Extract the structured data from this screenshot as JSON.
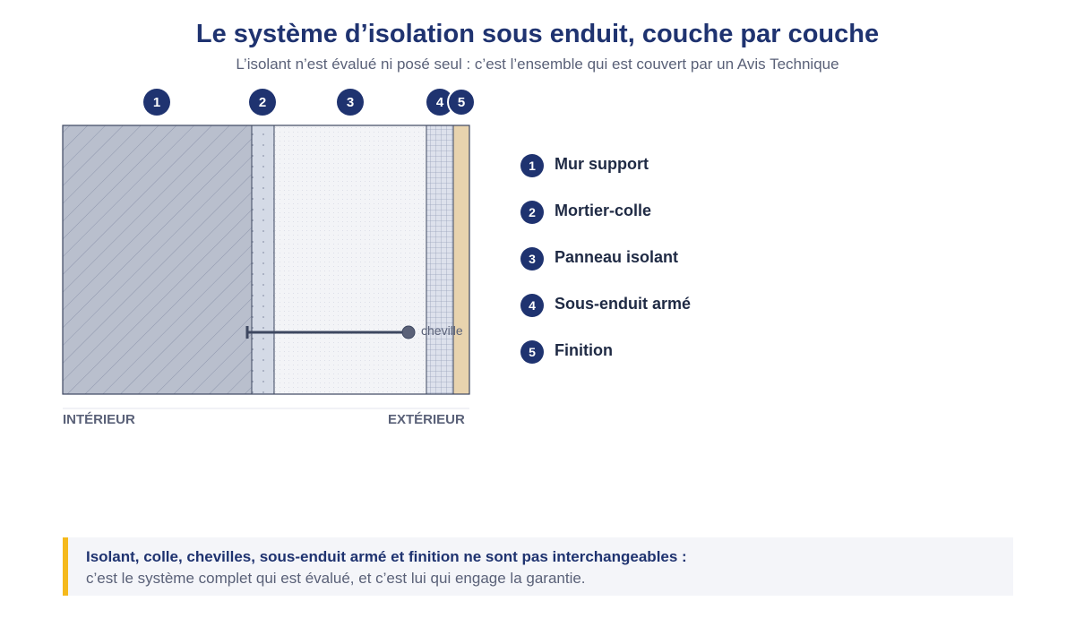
{
  "header": {
    "title": "Le système d’isolation sous enduit, couche par couche",
    "subtitle": "L’isolant n’est évalué ni posé seul : c’est l’ensemble qui est couvert par un Avis Technique"
  },
  "diagram": {
    "layers": [
      {
        "number": "1",
        "label": "Mur support",
        "color": "#b9bfcd"
      },
      {
        "number": "2",
        "label": "Mortier-colle",
        "color": "#d4dae6"
      },
      {
        "number": "3",
        "label": "Panneau isolant",
        "color": "#f3f4f7"
      },
      {
        "number": "4",
        "label": "Sous-enduit armé",
        "color": "#dde1ec"
      },
      {
        "number": "5",
        "label": "Finition",
        "color": "#e8d3ae"
      }
    ],
    "anchor_label": "cheville",
    "interior_label": "INTÉRIEUR",
    "exterior_label": "EXTÉRIEUR"
  },
  "note": {
    "strong": "Isolant, colle, chevilles, sous-enduit armé et finition ne sont pas interchangeables :",
    "body": "c’est le système complet qui est évalué, et c’est lui qui engage la garantie.",
    "accent_color": "#f5b91c"
  }
}
